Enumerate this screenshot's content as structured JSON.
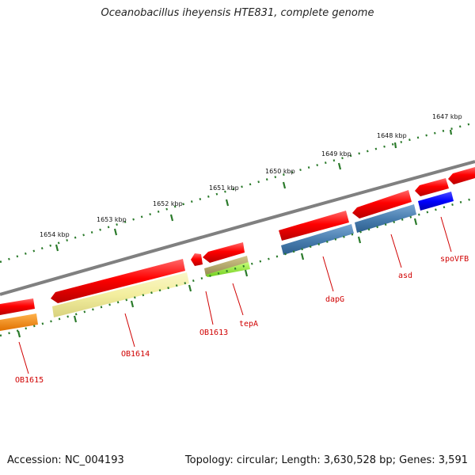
{
  "title": "Oceanobacillus iheyensis HTE831, complete genome",
  "footer": {
    "accession": "Accession: NC_004193",
    "summary": "Topology: circular; Length: 3,630,528 bp; Genes: 3,591"
  },
  "ticks": {
    "labels": [
      "1647 kbp",
      "1648 kbp",
      "1649 kbp",
      "1650 kbp",
      "1651 kbp",
      "1652 kbp",
      "1653 kbp",
      "1654 kbp"
    ]
  },
  "genes": {
    "OB1615": "OB1615",
    "OB1614": "OB1614",
    "OB1613": "OB1613",
    "tepA": "tepA",
    "dapG": "dapG",
    "asd": "asd",
    "spoVFB": "spoVFB"
  },
  "colors": {
    "backbone": "#808080",
    "cds": "#ff0000",
    "tick": "#2a7a2a",
    "label": "#d00000",
    "steelblue": "#4a7fb0",
    "pale_yellow": "#f3ee9e",
    "olive": "#b5a86a",
    "lime": "#9ef03c",
    "orange": "#ff8c00",
    "blue": "#0000ff"
  }
}
